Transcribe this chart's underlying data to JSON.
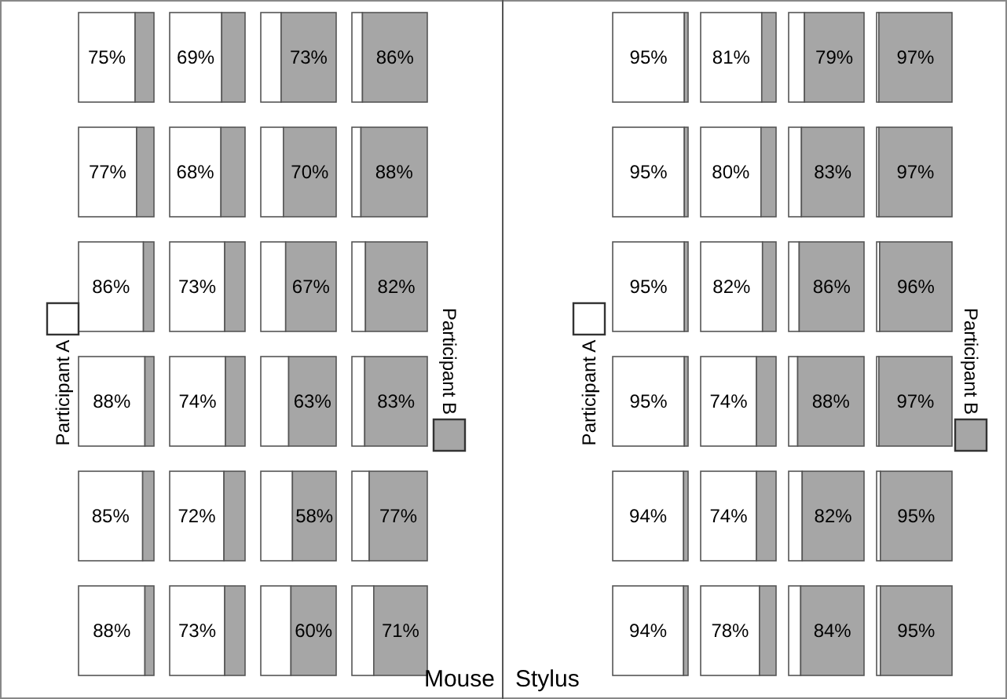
{
  "chart_data": [
    {
      "type": "bar",
      "orientation": "horizontal",
      "stacked": true,
      "categories": [
        null,
        null,
        null,
        null,
        null,
        null
      ],
      "xlim": [
        0,
        100
      ],
      "tick_labels": false,
      "legend": "left",
      "series": [
        {
          "name": "Participant A",
          "color": "#ffffff",
          "values": [
            75,
            77,
            86,
            88,
            85,
            88
          ],
          "value_labels": [
            "75%",
            "77%",
            "86%",
            "88%",
            "85%",
            "88%"
          ]
        },
        {
          "color": "#a6a6a6",
          "values": [
            25,
            23,
            14,
            12,
            15,
            12
          ],
          "value_labels": [
            null,
            null,
            null,
            null,
            null,
            null
          ]
        }
      ]
    },
    {
      "type": "bar",
      "orientation": "horizontal",
      "stacked": true,
      "categories": [
        null,
        null,
        null,
        null,
        null,
        null
      ],
      "xlim": [
        0,
        100
      ],
      "tick_labels": false,
      "series": [
        {
          "color": "#ffffff",
          "values": [
            69,
            68,
            73,
            74,
            72,
            73
          ],
          "value_labels": [
            "69%",
            "68%",
            "73%",
            "74%",
            "72%",
            "73%"
          ]
        },
        {
          "color": "#a6a6a6",
          "values": [
            31,
            32,
            27,
            26,
            28,
            27
          ],
          "value_labels": [
            null,
            null,
            null,
            null,
            null,
            null
          ]
        }
      ]
    },
    {
      "type": "bar",
      "orientation": "horizontal",
      "stacked": true,
      "categories": [
        null,
        null,
        null,
        null,
        null,
        null
      ],
      "xlim": [
        0,
        100
      ],
      "tick_labels": false,
      "series": [
        {
          "color": "#ffffff",
          "values": [
            27,
            30,
            33,
            37,
            42,
            40
          ],
          "value_labels": [
            null,
            null,
            null,
            null,
            null,
            null
          ]
        },
        {
          "color": "#a6a6a6",
          "values": [
            73,
            70,
            67,
            63,
            58,
            60
          ],
          "value_labels": [
            "73%",
            "70%",
            "67%",
            "63%",
            "58%",
            "60%"
          ]
        }
      ]
    },
    {
      "type": "bar",
      "orientation": "horizontal",
      "stacked": true,
      "xlabel": "Mouse",
      "categories": [
        null,
        null,
        null,
        null,
        null,
        null
      ],
      "xlim": [
        0,
        100
      ],
      "tick_labels": false,
      "legend": "right",
      "series": [
        {
          "color": "#ffffff",
          "values": [
            14,
            12,
            18,
            17,
            23,
            29
          ],
          "value_labels": [
            null,
            null,
            null,
            null,
            null,
            null
          ]
        },
        {
          "name": "Participant B",
          "color": "#a6a6a6",
          "values": [
            86,
            88,
            82,
            83,
            77,
            71
          ],
          "value_labels": [
            "86%",
            "88%",
            "82%",
            "83%",
            "77%",
            "71%"
          ]
        }
      ]
    },
    {
      "type": "bar",
      "orientation": "horizontal",
      "stacked": true,
      "xlabel": "Stylus",
      "categories": [
        null,
        null,
        null,
        null,
        null,
        null
      ],
      "xlim": [
        0,
        100
      ],
      "tick_labels": false,
      "legend": "left",
      "series": [
        {
          "name": "Participant A",
          "color": "#ffffff",
          "values": [
            95,
            95,
            95,
            95,
            94,
            94
          ],
          "value_labels": [
            "95%",
            "95%",
            "95%",
            "95%",
            "94%",
            "94%"
          ]
        },
        {
          "color": "#a6a6a6",
          "values": [
            5,
            5,
            5,
            5,
            6,
            6
          ],
          "value_labels": [
            null,
            null,
            null,
            null,
            null,
            null
          ]
        }
      ]
    },
    {
      "type": "bar",
      "orientation": "horizontal",
      "stacked": true,
      "categories": [
        null,
        null,
        null,
        null,
        null,
        null
      ],
      "xlim": [
        0,
        100
      ],
      "tick_labels": false,
      "series": [
        {
          "color": "#ffffff",
          "values": [
            81,
            80,
            82,
            74,
            74,
            78
          ],
          "value_labels": [
            "81%",
            "80%",
            "82%",
            "74%",
            "74%",
            "78%"
          ]
        },
        {
          "color": "#a6a6a6",
          "values": [
            19,
            20,
            18,
            26,
            26,
            22
          ],
          "value_labels": [
            null,
            null,
            null,
            null,
            null,
            null
          ]
        }
      ]
    },
    {
      "type": "bar",
      "orientation": "horizontal",
      "stacked": true,
      "categories": [
        null,
        null,
        null,
        null,
        null,
        null
      ],
      "xlim": [
        0,
        100
      ],
      "tick_labels": false,
      "series": [
        {
          "color": "#ffffff",
          "values": [
            21,
            17,
            14,
            12,
            18,
            16
          ],
          "value_labels": [
            null,
            null,
            null,
            null,
            null,
            null
          ]
        },
        {
          "color": "#a6a6a6",
          "values": [
            79,
            83,
            86,
            88,
            82,
            84
          ],
          "value_labels": [
            "79%",
            "83%",
            "86%",
            "88%",
            "82%",
            "84%"
          ]
        }
      ]
    },
    {
      "type": "bar",
      "orientation": "horizontal",
      "stacked": true,
      "categories": [
        null,
        null,
        null,
        null,
        null,
        null
      ],
      "xlim": [
        0,
        100
      ],
      "tick_labels": false,
      "legend": "right",
      "series": [
        {
          "color": "#ffffff",
          "values": [
            3,
            3,
            4,
            3,
            5,
            5
          ],
          "value_labels": [
            null,
            null,
            null,
            null,
            null,
            null
          ]
        },
        {
          "name": "Participant B",
          "color": "#a6a6a6",
          "values": [
            97,
            97,
            96,
            97,
            95,
            95
          ],
          "value_labels": [
            "97%",
            "97%",
            "96%",
            "97%",
            "95%",
            "95%"
          ]
        }
      ]
    }
  ]
}
